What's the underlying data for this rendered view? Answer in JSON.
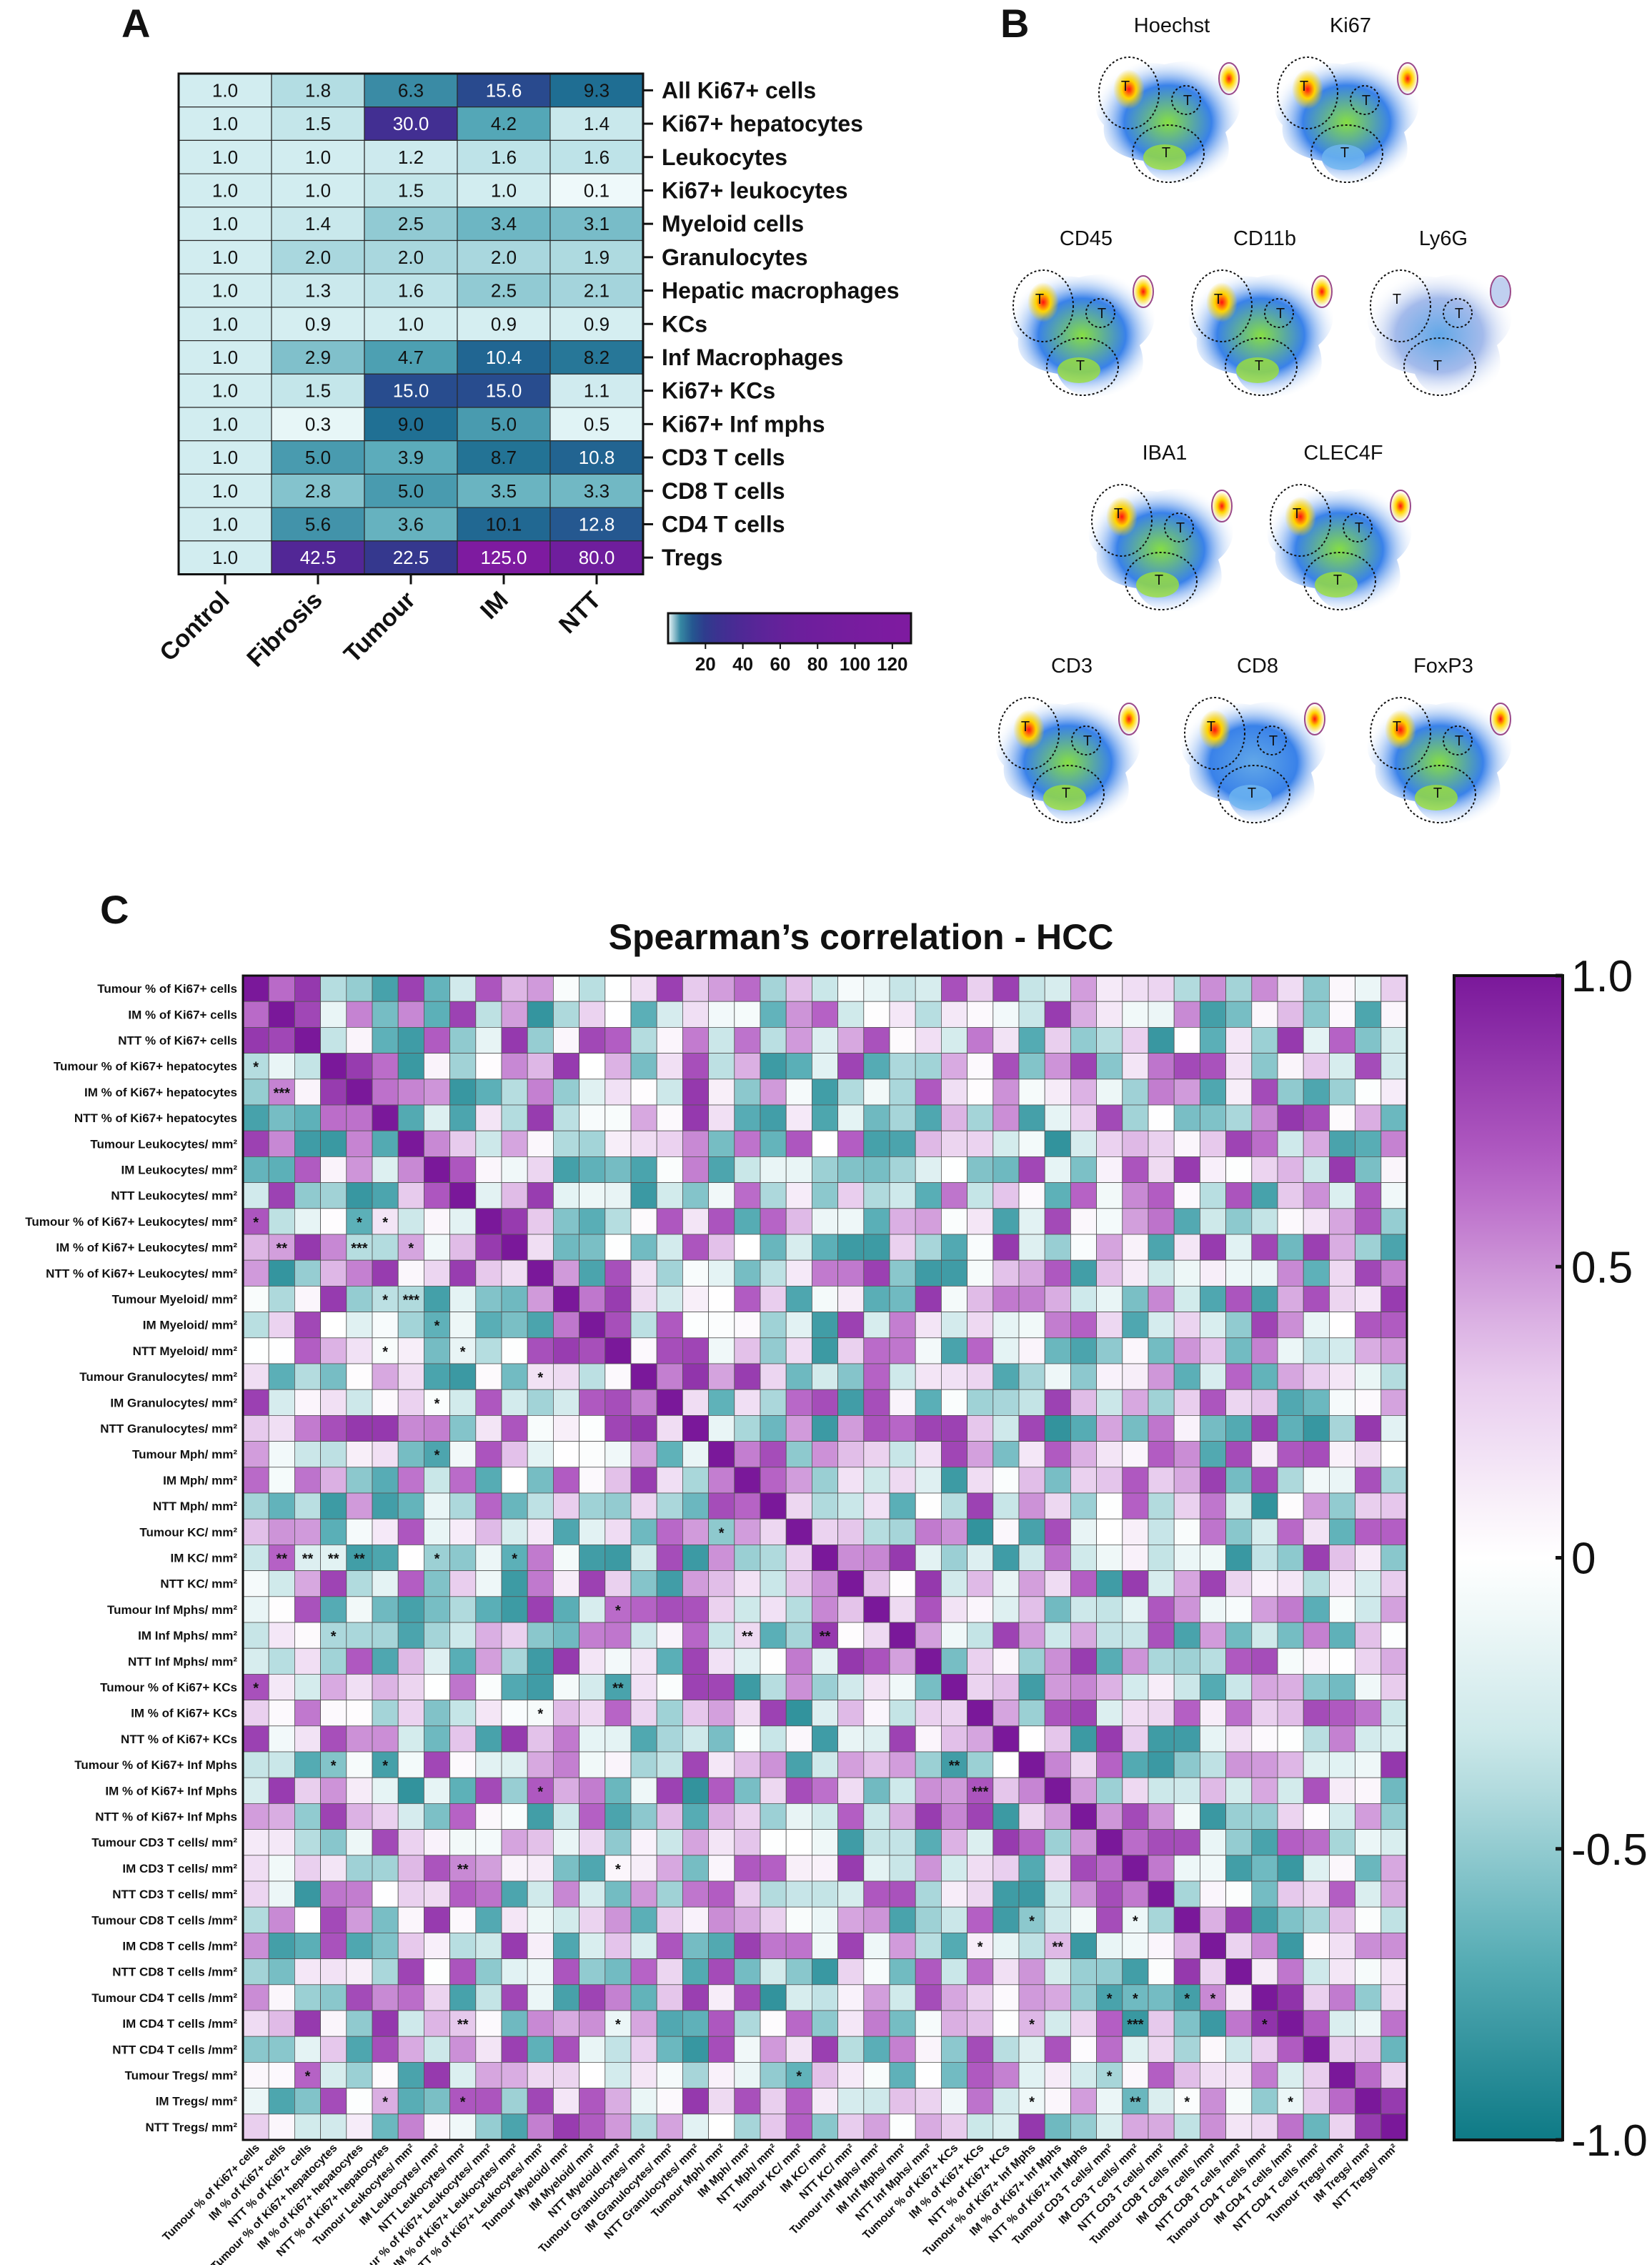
{
  "panels": {
    "a": "A",
    "b": "B",
    "c": "C"
  },
  "chart_data": [
    {
      "type": "heatmap",
      "panel": "A",
      "columns": [
        "Control",
        "Fibrosis",
        "Tumour",
        "IM",
        "NTT"
      ],
      "rows": [
        "All Ki67+ cells",
        "Ki67+ hepatocytes",
        "Leukocytes",
        "Ki67+ leukocytes",
        "Myeloid cells",
        "Granulocytes",
        "Hepatic macrophages",
        "KCs",
        "Inf Macrophages",
        "Ki67+ KCs",
        "Ki67+ Inf mphs",
        "CD3 T cells",
        "CD8 T cells",
        "CD4 T cells",
        "Tregs"
      ],
      "values": [
        [
          1.0,
          1.8,
          6.3,
          15.6,
          9.3
        ],
        [
          1.0,
          1.5,
          30.0,
          4.2,
          1.4
        ],
        [
          1.0,
          1.0,
          1.2,
          1.6,
          1.6
        ],
        [
          1.0,
          1.0,
          1.5,
          1.0,
          0.1
        ],
        [
          1.0,
          1.4,
          2.5,
          3.4,
          3.1
        ],
        [
          1.0,
          2.0,
          2.0,
          2.0,
          1.9
        ],
        [
          1.0,
          1.3,
          1.6,
          2.5,
          2.1
        ],
        [
          1.0,
          0.9,
          1.0,
          0.9,
          0.9
        ],
        [
          1.0,
          2.9,
          4.7,
          10.4,
          8.2
        ],
        [
          1.0,
          1.5,
          15.0,
          15.0,
          1.1
        ],
        [
          1.0,
          0.3,
          9.0,
          5.0,
          0.5
        ],
        [
          1.0,
          5.0,
          3.9,
          8.7,
          10.8
        ],
        [
          1.0,
          2.8,
          5.0,
          3.5,
          3.3
        ],
        [
          1.0,
          5.6,
          3.6,
          10.1,
          12.8
        ],
        [
          1.0,
          42.5,
          22.5,
          125.0,
          80.0
        ]
      ],
      "value_labels": [
        [
          "1.0",
          "1.8",
          "6.3",
          "15.6",
          "9.3"
        ],
        [
          "1.0",
          "1.5",
          "30.0",
          "4.2",
          "1.4"
        ],
        [
          "1.0",
          "1.0",
          "1.2",
          "1.6",
          "1.6"
        ],
        [
          "1.0",
          "1.0",
          "1.5",
          "1.0",
          "0.1"
        ],
        [
          "1.0",
          "1.4",
          "2.5",
          "3.4",
          "3.1"
        ],
        [
          "1.0",
          "2.0",
          "2.0",
          "2.0",
          "1.9"
        ],
        [
          "1.0",
          "1.3",
          "1.6",
          "2.5",
          "2.1"
        ],
        [
          "1.0",
          "0.9",
          "1.0",
          "0.9",
          "0.9"
        ],
        [
          "1.0",
          "2.9",
          "4.7",
          "10.4",
          "8.2"
        ],
        [
          "1.0",
          "1.5",
          "15.0",
          "15.0",
          "1.1"
        ],
        [
          "1.0",
          "0.3",
          "9.0",
          "5.0",
          "0.5"
        ],
        [
          "1.0",
          "5.0",
          "3.9",
          "8.7",
          "10.8"
        ],
        [
          "1.0",
          "2.8",
          "5.0",
          "3.5",
          "3.3"
        ],
        [
          "1.0",
          "5.6",
          "3.6",
          "10.1",
          "12.8"
        ],
        [
          "1.0",
          "42.5",
          "22.5",
          "125.0",
          "80.0"
        ]
      ],
      "colorbar": {
        "range": [
          0,
          130
        ],
        "ticks": [
          "20",
          "40",
          "60",
          "80",
          "100",
          "120"
        ]
      },
      "colors": [
        "#e9f6f7",
        "#2c8c9e",
        "#233f86",
        "#5a2a9a",
        "#7b1f9e"
      ]
    },
    {
      "type": "heatmap",
      "panel": "C",
      "title": "Spearman’s correlation - HCC",
      "labels": [
        "Tumour % of Ki67+ cells",
        "IM % of Ki67+ cells",
        "NTT % of Ki67+ cells",
        "Tumour % of Ki67+ hepatocytes",
        "IM % of Ki67+ hepatocytes",
        "NTT % of Ki67+ hepatocytes",
        "Tumour Leukocytes/ mm²",
        "IM Leukocytes/ mm²",
        "NTT Leukocytes/ mm²",
        "Tumour % of Ki67+ Leukocytes/ mm²",
        "IM % of Ki67+ Leukocytes/ mm²",
        "NTT % of Ki67+ Leukocytes/ mm²",
        "Tumour Myeloid/ mm²",
        "IM Myeloid/ mm²",
        "NTT Myeloid/ mm²",
        "Tumour Granulocytes/ mm²",
        "IM Granulocytes/ mm²",
        "NTT Granulocytes/ mm²",
        "Tumour Mph/ mm²",
        "IM Mph/ mm²",
        "NTT Mph/ mm²",
        "Tumour KC/ mm²",
        "IM KC/ mm²",
        "NTT KC/ mm²",
        "Tumour Inf Mphs/ mm²",
        "IM Inf Mphs/ mm²",
        "NTT Inf Mphs/ mm²",
        "Tumour % of Ki67+ KCs",
        "IM % of Ki67+ KCs",
        "NTT % of Ki67+ KCs",
        "Tumour % of Ki67+ Inf Mphs",
        "IM % of Ki67+ Inf Mphs",
        "NTT % of Ki67+ Inf Mphs",
        "Tumour CD3 T cells/ mm²",
        "IM CD3 T cells/ mm²",
        "NTT CD3 T cells/ mm²",
        "Tumour CD8 T cells /mm²",
        "IM CD8 T cells /mm²",
        "NTT CD8 T cells /mm²",
        "Tumour CD4 T cells /mm²",
        "IM CD4 T cells /mm²",
        "NTT CD4 T cells /mm²",
        "Tumour Tregs/ mm²",
        "IM Tregs/ mm²",
        "NTT Tregs/ mm²"
      ],
      "value_range": [
        -1.0,
        1.0
      ],
      "colorbar_ticks": [
        "1.0",
        "0.5",
        "0",
        "-0.5",
        "-1.0"
      ],
      "significance": [
        {
          "row": 3,
          "col": 0,
          "mark": "*"
        },
        {
          "row": 4,
          "col": 1,
          "mark": "***"
        },
        {
          "row": 9,
          "col": 0,
          "mark": "*"
        },
        {
          "row": 9,
          "col": 4,
          "mark": "*"
        },
        {
          "row": 9,
          "col": 5,
          "mark": "*"
        },
        {
          "row": 10,
          "col": 1,
          "mark": "**"
        },
        {
          "row": 10,
          "col": 4,
          "mark": "***"
        },
        {
          "row": 10,
          "col": 6,
          "mark": "*"
        },
        {
          "row": 12,
          "col": 5,
          "mark": "*"
        },
        {
          "row": 12,
          "col": 6,
          "mark": "***"
        },
        {
          "row": 13,
          "col": 7,
          "mark": "*"
        },
        {
          "row": 14,
          "col": 5,
          "mark": "*"
        },
        {
          "row": 14,
          "col": 8,
          "mark": "*"
        },
        {
          "row": 15,
          "col": 11,
          "mark": "*"
        },
        {
          "row": 16,
          "col": 7,
          "mark": "*"
        },
        {
          "row": 18,
          "col": 7,
          "mark": "*"
        },
        {
          "row": 21,
          "col": 18,
          "mark": "*"
        },
        {
          "row": 22,
          "col": 1,
          "mark": "**"
        },
        {
          "row": 22,
          "col": 2,
          "mark": "**"
        },
        {
          "row": 22,
          "col": 3,
          "mark": "**"
        },
        {
          "row": 22,
          "col": 4,
          "mark": "**"
        },
        {
          "row": 22,
          "col": 7,
          "mark": "*"
        },
        {
          "row": 22,
          "col": 10,
          "mark": "*"
        },
        {
          "row": 24,
          "col": 14,
          "mark": "*"
        },
        {
          "row": 25,
          "col": 3,
          "mark": "*"
        },
        {
          "row": 25,
          "col": 19,
          "mark": "**"
        },
        {
          "row": 25,
          "col": 22,
          "mark": "**"
        },
        {
          "row": 27,
          "col": 0,
          "mark": "*"
        },
        {
          "row": 27,
          "col": 14,
          "mark": "**"
        },
        {
          "row": 28,
          "col": 11,
          "mark": "*"
        },
        {
          "row": 30,
          "col": 3,
          "mark": "*"
        },
        {
          "row": 30,
          "col": 5,
          "mark": "*"
        },
        {
          "row": 30,
          "col": 27,
          "mark": "**"
        },
        {
          "row": 31,
          "col": 11,
          "mark": "*"
        },
        {
          "row": 31,
          "col": 28,
          "mark": "***"
        },
        {
          "row": 34,
          "col": 8,
          "mark": "**"
        },
        {
          "row": 34,
          "col": 14,
          "mark": "*"
        },
        {
          "row": 36,
          "col": 30,
          "mark": "*"
        },
        {
          "row": 36,
          "col": 34,
          "mark": "*"
        },
        {
          "row": 37,
          "col": 28,
          "mark": "*"
        },
        {
          "row": 37,
          "col": 31,
          "mark": "**"
        },
        {
          "row": 39,
          "col": 33,
          "mark": "*"
        },
        {
          "row": 39,
          "col": 34,
          "mark": "*"
        },
        {
          "row": 39,
          "col": 36,
          "mark": "*"
        },
        {
          "row": 39,
          "col": 37,
          "mark": "*"
        },
        {
          "row": 40,
          "col": 8,
          "mark": "**"
        },
        {
          "row": 40,
          "col": 14,
          "mark": "*"
        },
        {
          "row": 40,
          "col": 30,
          "mark": "*"
        },
        {
          "row": 40,
          "col": 34,
          "mark": "***"
        },
        {
          "row": 40,
          "col": 39,
          "mark": "*"
        },
        {
          "row": 42,
          "col": 2,
          "mark": "*"
        },
        {
          "row": 42,
          "col": 21,
          "mark": "*"
        },
        {
          "row": 42,
          "col": 33,
          "mark": "*"
        },
        {
          "row": 43,
          "col": 5,
          "mark": "*"
        },
        {
          "row": 43,
          "col": 8,
          "mark": "*"
        },
        {
          "row": 43,
          "col": 30,
          "mark": "*"
        },
        {
          "row": 43,
          "col": 34,
          "mark": "**"
        },
        {
          "row": 43,
          "col": 36,
          "mark": "*"
        },
        {
          "row": 43,
          "col": 40,
          "mark": "*"
        }
      ]
    }
  ],
  "spatial_maps": {
    "markers": [
      "Hoechst",
      "Ki67",
      "CD45",
      "CD11b",
      "Ly6G",
      "IBA1",
      "CLEC4F",
      "CD3",
      "CD8",
      "FoxP3"
    ],
    "region_label": "T"
  }
}
